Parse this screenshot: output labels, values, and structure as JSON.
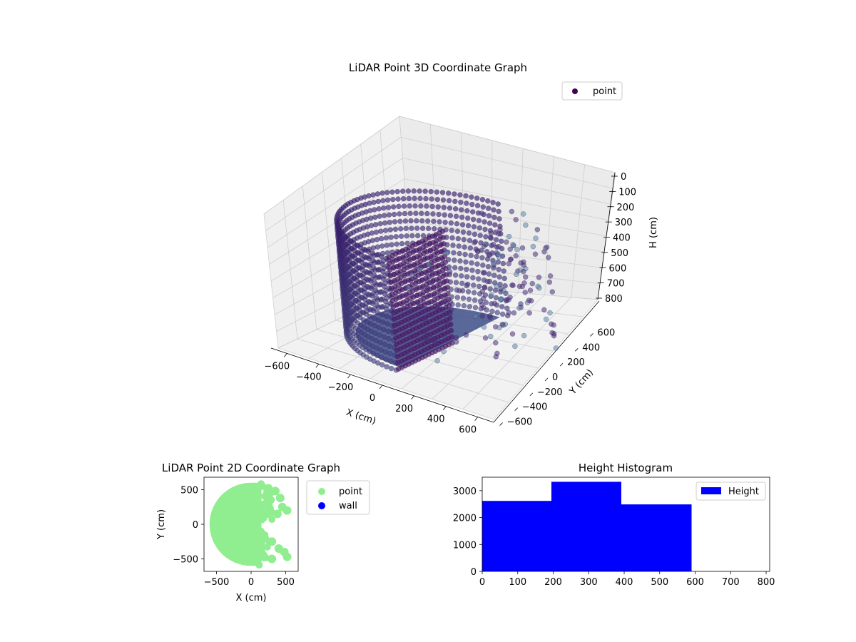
{
  "chart_data": [
    {
      "type": "scatter",
      "projection": "3d",
      "title": "LiDAR Point 3D Coordinate Graph",
      "xlabel": "X (cm)",
      "ylabel": "Y (cm)",
      "zlabel": "H (cm)",
      "xticks": [
        "−600",
        "−400",
        "−200",
        "0",
        "200",
        "400",
        "600"
      ],
      "yticks": [
        "−600",
        "−400",
        "−200",
        "0",
        "200",
        "400",
        "600"
      ],
      "zticks": [
        "0",
        "100",
        "200",
        "300",
        "400",
        "500",
        "600",
        "700",
        "800"
      ],
      "zrange": [
        800,
        0
      ],
      "legend": {
        "label": "point",
        "placement": "top-right"
      },
      "colormap": "viridis",
      "marker_color": "#440154",
      "grid": true,
      "series": [
        {
          "name": "point",
          "shape": "approximately half-cylinder wall of radius ~600 cm, heights 0–600 cm, with sparse scattered points on the remaining side"
        }
      ]
    },
    {
      "type": "scatter",
      "title": "LiDAR Point 2D Coordinate Graph",
      "xlabel": "X (cm)",
      "ylabel": "Y (cm)",
      "xticks": [
        "−500",
        "0",
        "500"
      ],
      "yticks": [
        "500",
        "0",
        "−500"
      ],
      "xlim": [
        -680,
        680
      ],
      "ylim": [
        -680,
        680
      ],
      "legend": {
        "placement": "outside-right",
        "entries": [
          {
            "label": "point",
            "color": "#90ee90"
          },
          {
            "label": "wall",
            "color": "#0000ff"
          }
        ]
      },
      "series": [
        {
          "name": "point",
          "color": "#90ee90"
        },
        {
          "name": "wall",
          "color": "#0000ff"
        }
      ]
    },
    {
      "type": "bar",
      "subtype": "histogram",
      "title": "Height Histogram",
      "xticks": [
        "0",
        "100",
        "200",
        "300",
        "400",
        "500",
        "600",
        "700",
        "800"
      ],
      "yticks": [
        "0",
        "1000",
        "2000",
        "3000"
      ],
      "xlim": [
        0,
        810
      ],
      "ylim": [
        0,
        3500
      ],
      "color": "#0000ff",
      "legend": {
        "label": "Height",
        "placement": "top-right"
      },
      "bins": [
        {
          "from": 0,
          "to": 195,
          "count": 2620
        },
        {
          "from": 195,
          "to": 392,
          "count": 3330
        },
        {
          "from": 392,
          "to": 590,
          "count": 2490
        }
      ]
    }
  ]
}
